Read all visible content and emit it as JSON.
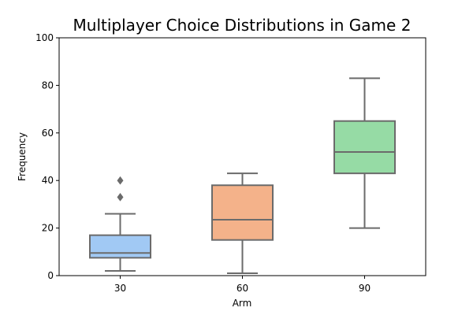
{
  "chart_data": {
    "type": "box",
    "title": "Multiplayer Choice Distributions in Game 2",
    "xlabel": "Arm",
    "ylabel": "Frequency",
    "ylim": [
      0,
      100
    ],
    "yticks": [
      0,
      20,
      40,
      60,
      80,
      100
    ],
    "grid": false,
    "categories": [
      "30",
      "60",
      "90"
    ],
    "boxes": [
      {
        "category": "30",
        "whisker_low": 2,
        "q1": 7.5,
        "median": 9.5,
        "q3": 17,
        "whisker_high": 26,
        "outliers": [
          33,
          40
        ],
        "color": "#a1c9f4"
      },
      {
        "category": "60",
        "whisker_low": 1,
        "q1": 15,
        "median": 23.5,
        "q3": 38,
        "whisker_high": 43,
        "outliers": [],
        "color": "#f4b28a"
      },
      {
        "category": "90",
        "whisker_low": 20,
        "q1": 43,
        "median": 52,
        "q3": 65,
        "whisker_high": 83,
        "outliers": [],
        "color": "#96dba5"
      }
    ],
    "line_color": "#6b6b6b"
  }
}
